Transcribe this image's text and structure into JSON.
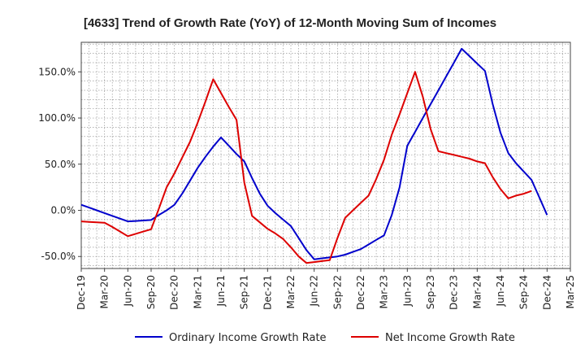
{
  "chart_data": {
    "type": "line",
    "title": "[4633]  Trend of Growth Rate (YoY) of 12-Month Moving Sum of Incomes",
    "xlabel": "",
    "ylabel": "",
    "x_ticks": [
      "Dec-19",
      "Mar-20",
      "Jun-20",
      "Sep-20",
      "Dec-20",
      "Mar-21",
      "Jun-21",
      "Sep-21",
      "Dec-21",
      "Mar-22",
      "Jun-22",
      "Sep-22",
      "Dec-22",
      "Mar-23",
      "Jun-23",
      "Sep-23",
      "Dec-23",
      "Mar-24",
      "Jun-24",
      "Sep-24",
      "Dec-24",
      "Mar-25"
    ],
    "y_ticks": [
      {
        "value": 150,
        "label": "150.0%"
      },
      {
        "value": 100,
        "label": "100.0%"
      },
      {
        "value": 50,
        "label": "50.0%"
      },
      {
        "value": 0,
        "label": "0.0%"
      },
      {
        "value": -50,
        "label": "-50.0%"
      }
    ],
    "ylim": [
      -63,
      182
    ],
    "grid": true,
    "legend_position": "bottom",
    "series": [
      {
        "name": "Ordinary Income Growth Rate",
        "color": "#0000cc",
        "start": "Dec-19",
        "step": "month",
        "values": [
          6,
          3,
          0,
          -3,
          -6,
          -9,
          -12,
          -11.5,
          -11,
          -10.5,
          -5,
          0,
          6,
          18,
          32,
          46,
          58,
          69,
          79,
          70,
          61,
          53,
          35,
          18,
          5,
          -3,
          -10,
          -17,
          -30,
          -43,
          -53,
          -52,
          -51,
          -50,
          -48,
          -45,
          -42,
          -37,
          -32,
          -27,
          -5,
          25,
          70,
          85,
          100,
          115,
          130,
          145,
          160,
          175,
          167,
          159,
          151,
          115,
          84,
          62,
          51,
          42,
          33,
          14,
          -5
        ]
      },
      {
        "name": "Net Income Growth Rate",
        "color": "#dd0000",
        "start": "Dec-19",
        "step": "month",
        "values": [
          -12,
          -12.5,
          -13,
          -13.5,
          -18,
          -23,
          -28,
          -25.5,
          -23,
          -20.5,
          2,
          25,
          40,
          57,
          74,
          95,
          118,
          142,
          127,
          112,
          98,
          30,
          -6,
          -13,
          -20,
          -25,
          -31,
          -40,
          -50,
          -57,
          -56,
          -55,
          -54,
          -30,
          -8,
          0,
          8,
          16,
          34,
          55,
          82,
          104,
          127,
          150,
          123,
          88,
          64,
          62,
          60,
          58,
          56,
          53,
          51,
          36,
          23,
          13,
          16,
          18,
          21
        ]
      }
    ]
  }
}
